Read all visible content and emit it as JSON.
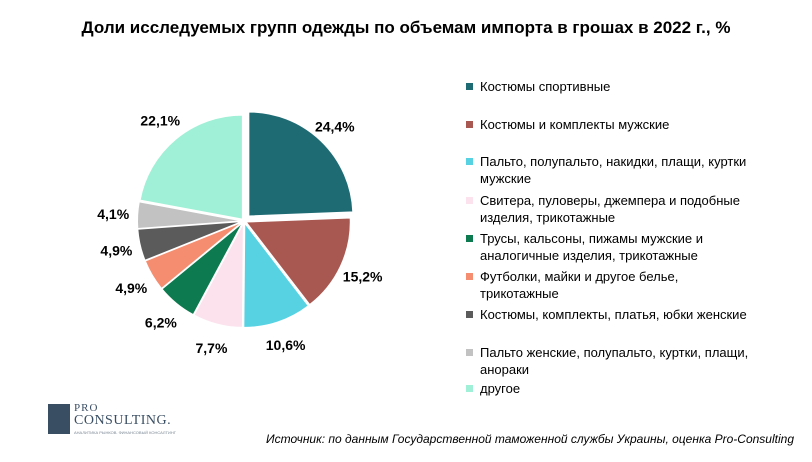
{
  "chart_data": {
    "type": "pie",
    "title": "Доли исследуемых групп одежды по объемам импорта в грошах в 2022 г., %",
    "start_angle_deg": 0,
    "direction": "clockwise",
    "slices": [
      {
        "label": "Костюмы спортивные",
        "value": 24.4,
        "value_label": "24,4%",
        "color": "#1f6b74",
        "exploded": true
      },
      {
        "label": "Костюмы и комплекты мужские",
        "value": 15.2,
        "value_label": "15,2%",
        "color": "#a85850"
      },
      {
        "label": "Пальто, полупальто, накидки, плащи, куртки мужские",
        "value": 10.6,
        "value_label": "10,6%",
        "color": "#56d2e3"
      },
      {
        "label": "Свитера, пуловеры, джемпера и подобные изделия, трикотажные",
        "value": 7.7,
        "value_label": "7,7%",
        "color": "#fbe2ed"
      },
      {
        "label": "Трусы, кальсоны, пижамы мужские и аналогичные изделия, трикотажные",
        "value": 6.2,
        "value_label": "6,2%",
        "color": "#0d7a4f"
      },
      {
        "label": "Футболки, майки и другое белье, трикотажные",
        "value": 4.9,
        "value_label": "4,9%",
        "color": "#f58d70"
      },
      {
        "label": "Костюмы, комплекты, платья, юбки женские",
        "value": 4.9,
        "value_label": "4,9%",
        "color": "#5b5b5b"
      },
      {
        "label": "Пальто женские, полупальто, куртки, плащи, анораки",
        "value": 4.1,
        "value_label": "4,1%",
        "color": "#c2c2c2"
      },
      {
        "label": "другое",
        "value": 22.1,
        "value_label": "22,1%",
        "color": "#9ff0d6"
      }
    ],
    "legend_position": "right"
  },
  "logo": {
    "pro": "PRO",
    "consulting": "CONSULTING.",
    "tagline": "АНАЛИТИКА РЫНКОВ. ФИНАНСОВЫЙ КОНСАЛТИНГ"
  },
  "source": "Источник: по данным Государственной таможенной службы Украины, оценка Pro-Consulting"
}
